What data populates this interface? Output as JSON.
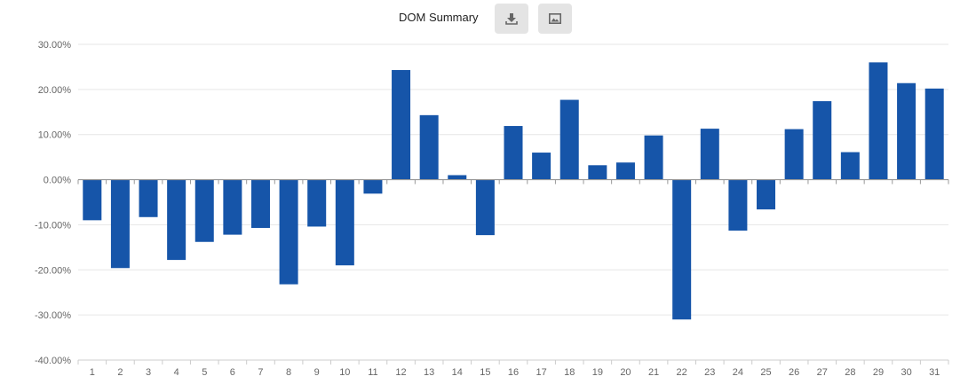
{
  "header": {
    "title": "DOM Summary",
    "download_icon": "download-icon",
    "image_icon": "image-icon"
  },
  "colors": {
    "bar": "#1655a9",
    "grid": "#e6e6e6",
    "axis": "#999999"
  },
  "chart_data": {
    "type": "bar",
    "title": "DOM Summary",
    "xlabel": "",
    "ylabel": "",
    "ylim": [
      -40,
      30
    ],
    "y_ticks": [
      "30.00%",
      "20.00%",
      "10.00%",
      "0.00%",
      "-10.00%",
      "-20.00%",
      "-30.00%",
      "-40.00%"
    ],
    "y_tick_values": [
      30,
      20,
      10,
      0,
      -10,
      -20,
      -30,
      -40
    ],
    "categories": [
      "1",
      "2",
      "3",
      "4",
      "5",
      "6",
      "7",
      "8",
      "9",
      "10",
      "11",
      "12",
      "13",
      "14",
      "15",
      "16",
      "17",
      "18",
      "19",
      "20",
      "21",
      "22",
      "23",
      "24",
      "25",
      "26",
      "27",
      "28",
      "29",
      "30",
      "31"
    ],
    "values": [
      -9.0,
      -19.6,
      -8.3,
      -17.8,
      -13.8,
      -12.2,
      -10.7,
      -23.2,
      -10.4,
      -19.0,
      -3.1,
      24.3,
      14.3,
      1.0,
      -12.3,
      11.9,
      6.0,
      17.7,
      3.2,
      3.8,
      9.8,
      -31.0,
      11.3,
      -11.3,
      -6.6,
      11.2,
      17.4,
      6.1,
      26.0,
      21.4,
      20.2
    ],
    "grid": true,
    "legend": "none"
  }
}
